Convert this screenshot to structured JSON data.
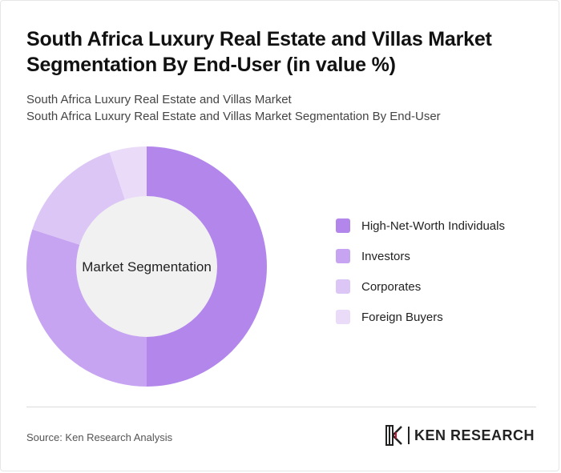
{
  "title": "South Africa Luxury Real Estate and Villas Market Segmentation By End-User (in value %)",
  "subtitle_lines": [
    "South Africa Luxury Real Estate and Villas Market",
    "South Africa Luxury Real Estate and Villas Market Segmentation By End-User"
  ],
  "chart_data": {
    "type": "pie",
    "center_label": "Market Segmentation",
    "categories": [
      "High-Net-Worth Individuals",
      "Investors",
      "Corporates",
      "Foreign Buyers"
    ],
    "values": [
      50,
      30,
      15,
      5
    ],
    "colors": [
      "#b386ec",
      "#c7a4f1",
      "#dbc6f6",
      "#eadcf9"
    ],
    "legend_position": "right"
  },
  "footer": {
    "source": "Source: Ken Research Analysis",
    "brand": "KEN RESEARCH",
    "brand_icon": "ken-research-logo-icon"
  }
}
